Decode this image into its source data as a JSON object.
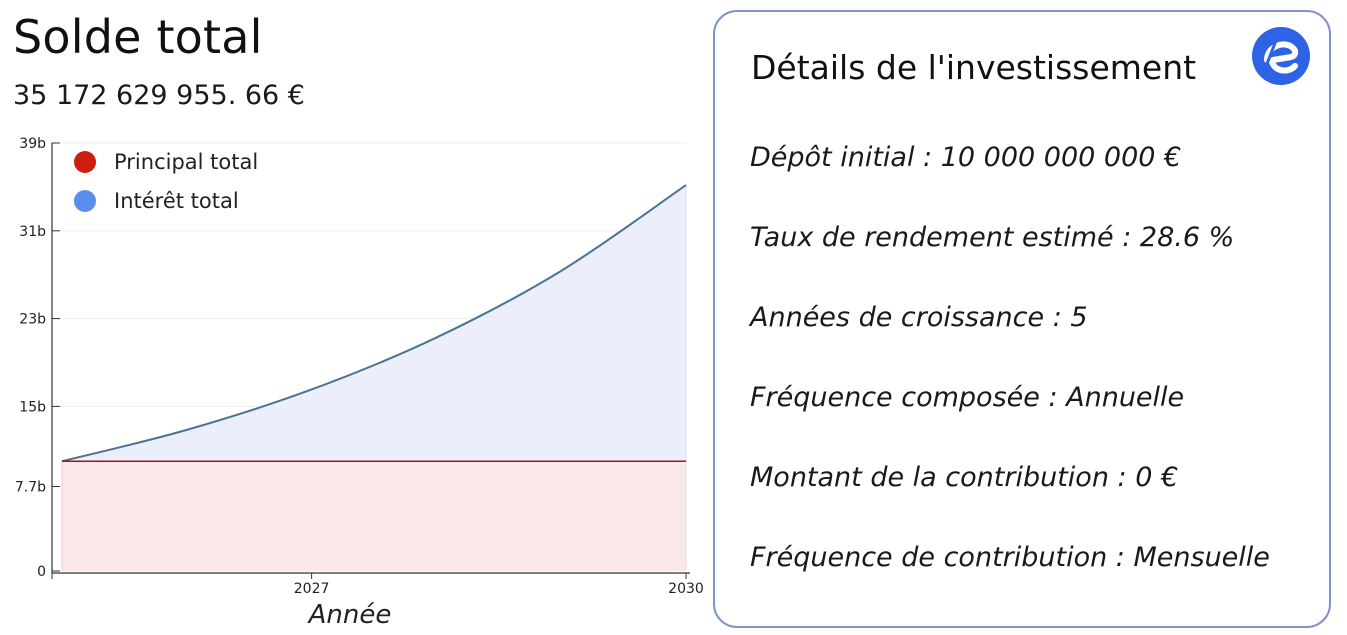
{
  "header": {
    "title": "Solde total",
    "balance": "35 172 629 955. 66 €"
  },
  "panel": {
    "title": "Détails de l'investissement",
    "logo_icon": "e-logo-icon",
    "details": [
      "Dépôt initial : 10 000 000 000 €",
      "Taux de rendement estimé : 28.6 %",
      "Années de croissance : 5",
      "Fréquence composée : Annuelle",
      "Montant de la contribution : 0 €",
      "Fréquence de contribution : Mensuelle"
    ]
  },
  "chart_data": {
    "type": "area",
    "xlabel": "Année",
    "ylabel": "",
    "x": [
      2025,
      2026,
      2027,
      2028,
      2029,
      2030
    ],
    "xlim": [
      2025,
      2030
    ],
    "ylim": [
      0,
      39
    ],
    "x_ticks": [
      {
        "value": 2027,
        "label": "2027"
      },
      {
        "value": 2030,
        "label": "2030"
      }
    ],
    "y_ticks": [
      {
        "value": 0,
        "label": "0"
      },
      {
        "value": 7.7,
        "label": "7.7b"
      },
      {
        "value": 15,
        "label": "15b"
      },
      {
        "value": 23,
        "label": "23b"
      },
      {
        "value": 31,
        "label": "31b"
      },
      {
        "value": 39,
        "label": "39b"
      }
    ],
    "series": [
      {
        "name": "Principal total",
        "color": "#cc1f0f",
        "fill": "#fbe9ea",
        "line": "#b01010",
        "values": [
          10,
          10,
          10,
          10,
          10,
          10
        ]
      },
      {
        "name": "Intérêt total",
        "color": "#5b8def",
        "fill": "#eceefb",
        "line": "#4a7494",
        "values": [
          10,
          12.86,
          16.54,
          21.27,
          27.35,
          35.17
        ]
      }
    ],
    "legend_position": "top-left",
    "grid": true
  }
}
